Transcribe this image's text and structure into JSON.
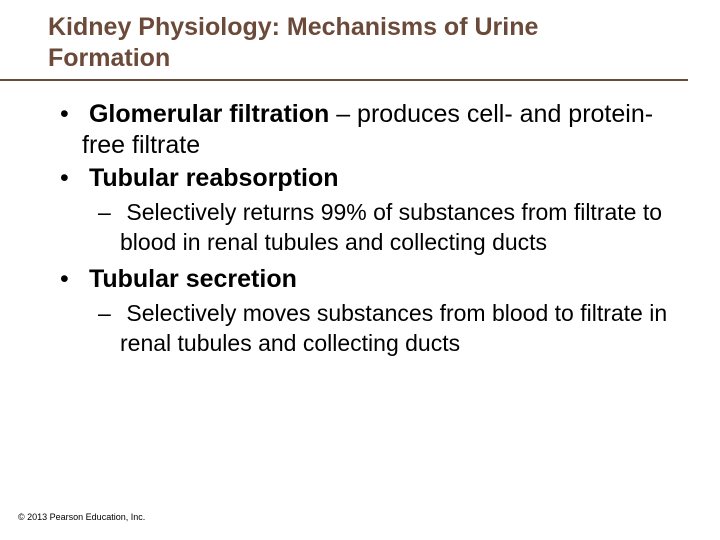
{
  "title": "Kidney Physiology: Mechanisms of Urine Formation",
  "title_color": "#6b4a3a",
  "title_fontsize": 25,
  "body_fontsize_l1": 25,
  "body_fontsize_l2": 23,
  "background_color": "#ffffff",
  "text_color": "#000000",
  "bullets": [
    {
      "bold_lead": "Glomerular filtration",
      "rest": " – produces cell- and protein-free filtrate",
      "subs": []
    },
    {
      "bold_lead": "Tubular reabsorption",
      "rest": "",
      "subs": [
        {
          "text": "Selectively returns 99% of substances from filtrate to blood in renal tubules and collecting ducts"
        }
      ]
    },
    {
      "bold_lead": "Tubular secretion",
      "rest": "",
      "subs": [
        {
          "text": "Selectively moves substances from blood to filtrate in renal tubules and collecting ducts"
        }
      ]
    }
  ],
  "copyright": "© 2013 Pearson Education, Inc."
}
